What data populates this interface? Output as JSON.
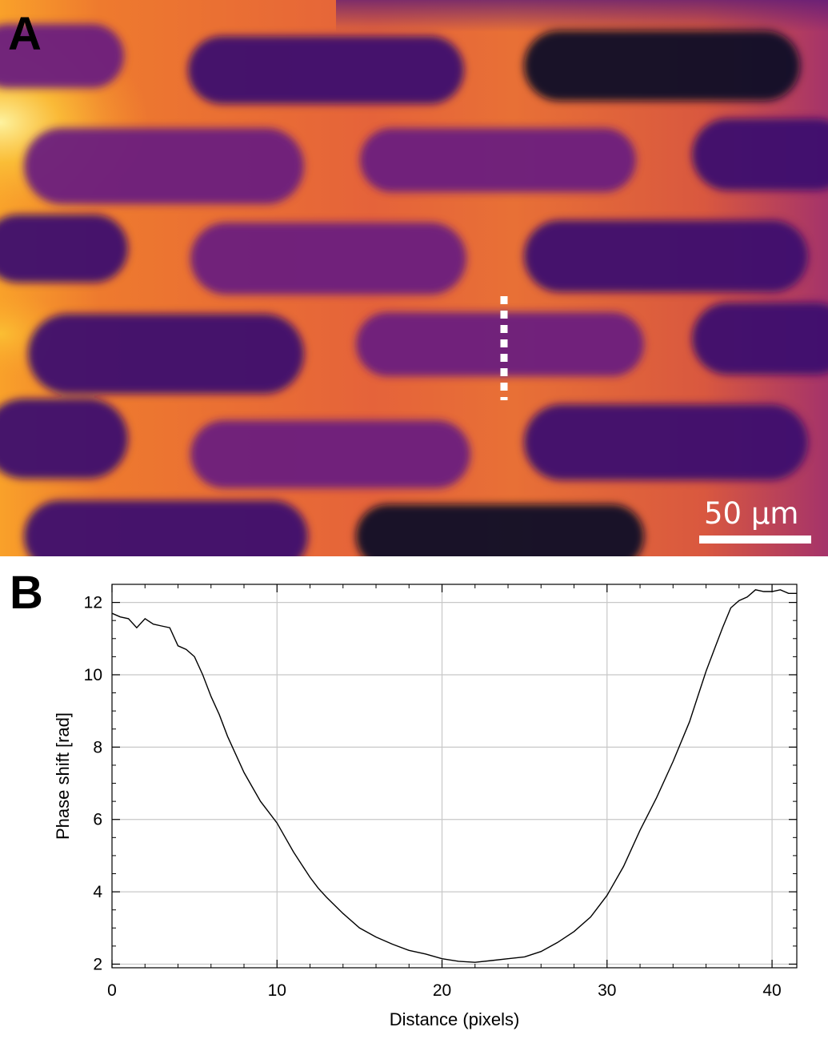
{
  "panels": {
    "a_label": "A",
    "b_label": "B"
  },
  "image_panel": {
    "scale_bar_label": "50 µm",
    "colormap": [
      "#0d0829",
      "#3b0f6f",
      "#6a1c7e",
      "#a3306e",
      "#d9534a",
      "#f07e2a",
      "#fbb52e",
      "#fcf5a8"
    ]
  },
  "chart_data": {
    "type": "line",
    "xlabel": "Distance (pixels)",
    "ylabel": "Phase shift [rad]",
    "xlim": [
      0,
      41.5
    ],
    "ylim": [
      1.9,
      12.5
    ],
    "xticks": [
      0,
      10,
      20,
      30,
      40
    ],
    "yticks": [
      2,
      4,
      6,
      8,
      10,
      12
    ],
    "grid": true,
    "line_color": "#000000",
    "series": [
      {
        "x": [
          0,
          0.5,
          1,
          1.5,
          2,
          2.5,
          3,
          3.5,
          4,
          4.5,
          5,
          5.5,
          6,
          6.5,
          7,
          7.5,
          8,
          8.5,
          9,
          9.5,
          10,
          10.5,
          11,
          11.5,
          12,
          12.5,
          13,
          14,
          15,
          16,
          17,
          18,
          19,
          20,
          21,
          22,
          23,
          24,
          25,
          26,
          27,
          28,
          29,
          30,
          31,
          32,
          33,
          34,
          35,
          35.5,
          36,
          36.5,
          37,
          37.5,
          38,
          38.5,
          39,
          39.5,
          40,
          40.5,
          41,
          41.5
        ],
        "y": [
          11.7,
          11.6,
          11.55,
          11.3,
          11.55,
          11.4,
          11.35,
          11.3,
          10.8,
          10.7,
          10.5,
          10.0,
          9.4,
          8.9,
          8.3,
          7.8,
          7.3,
          6.9,
          6.5,
          6.2,
          5.9,
          5.5,
          5.1,
          4.75,
          4.4,
          4.1,
          3.85,
          3.4,
          3.0,
          2.75,
          2.55,
          2.38,
          2.28,
          2.15,
          2.08,
          2.05,
          2.1,
          2.15,
          2.2,
          2.35,
          2.6,
          2.9,
          3.3,
          3.9,
          4.7,
          5.7,
          6.6,
          7.6,
          8.7,
          9.4,
          10.1,
          10.7,
          11.3,
          11.85,
          12.05,
          12.15,
          12.35,
          12.3,
          12.3,
          12.35,
          12.25,
          12.25
        ]
      }
    ]
  }
}
